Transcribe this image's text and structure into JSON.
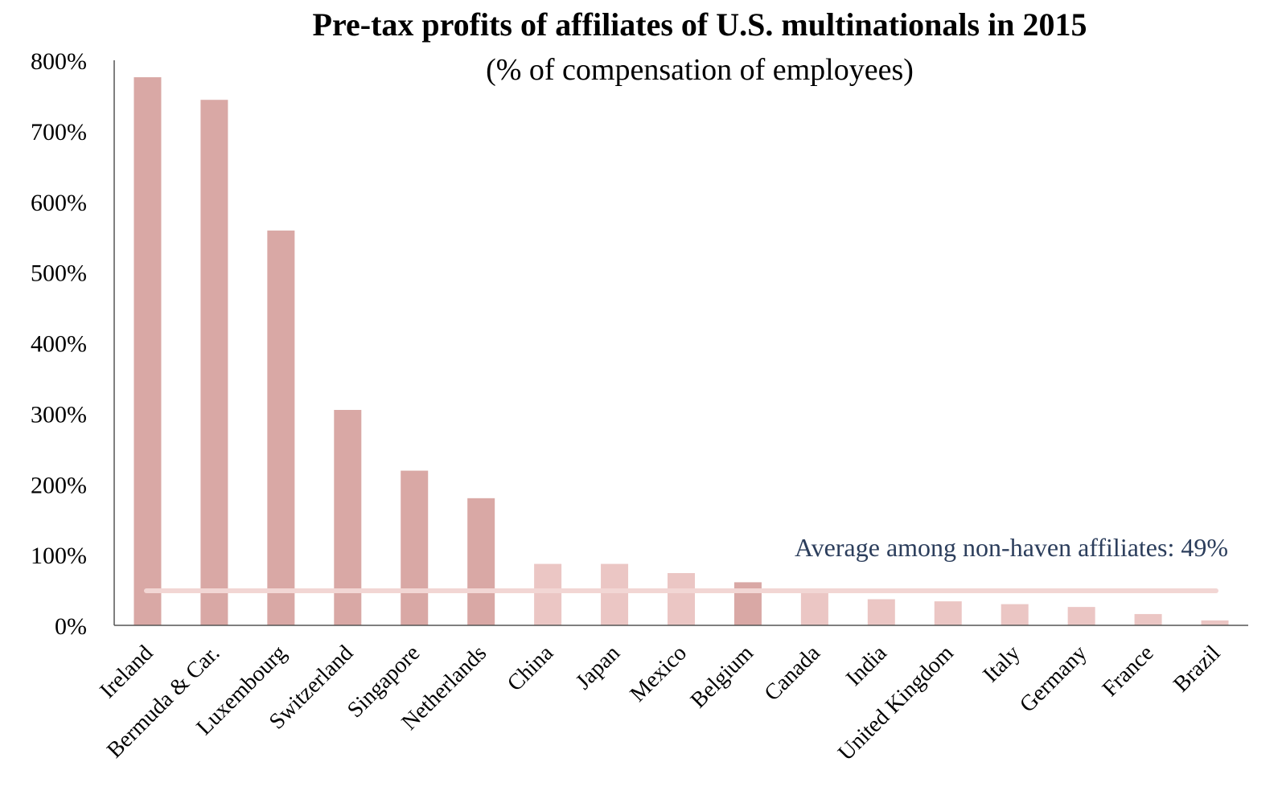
{
  "chart_data": {
    "type": "bar",
    "title": "Pre-tax profits of affiliates of U.S. multinationals in 2015",
    "subtitle": "(% of compensation of employees)",
    "xlabel": "",
    "ylabel": "",
    "ylim": [
      0,
      800
    ],
    "y_ticks": [
      "0%",
      "100%",
      "200%",
      "300%",
      "400%",
      "500%",
      "600%",
      "700%",
      "800%"
    ],
    "grid": false,
    "legend": "none",
    "categories": [
      "Ireland",
      "Bermuda & Car.",
      "Luxembourg",
      "Switzerland",
      "Singapore",
      "Netherlands",
      "China",
      "Japan",
      "Mexico",
      "Belgium",
      "Canada",
      "India",
      "United Kingdom",
      "Italy",
      "Germany",
      "France",
      "Brazil"
    ],
    "values": [
      776,
      744,
      559,
      305,
      219,
      180,
      87,
      87,
      74,
      61,
      52,
      37,
      34,
      30,
      26,
      16,
      7
    ],
    "bar_colors": [
      "#d9a8a5",
      "#d9a8a5",
      "#d9a8a5",
      "#d9a8a5",
      "#d9a8a5",
      "#d9a8a5",
      "#ebc6c4",
      "#ebc6c4",
      "#ebc6c4",
      "#d9a8a5",
      "#ebc6c4",
      "#ebc6c4",
      "#ebc6c4",
      "#ebc6c4",
      "#ebc6c4",
      "#ebc6c4",
      "#ebc6c4"
    ],
    "reference_line": {
      "value": 49,
      "label": "Average among non-haven affiliates: 49%",
      "color": "#f2d6d4",
      "label_color": "#2c3e5c"
    }
  }
}
